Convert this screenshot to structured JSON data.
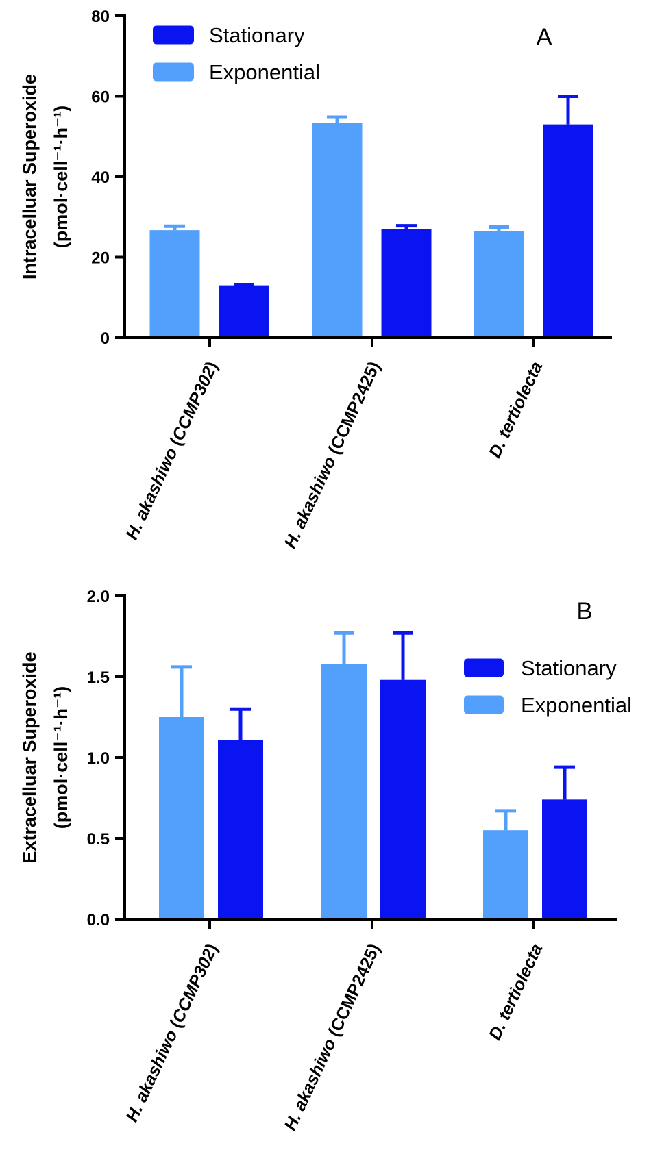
{
  "colors": {
    "stationary": "#0a14f0",
    "exponential": "#52a0fb",
    "axis": "#000000"
  },
  "chart_data": [
    {
      "type": "bar",
      "panel_label": "A",
      "ylabel": "Intracelluar Superoxide",
      "ylabel_unit": "(pmol·cell⁻¹·h⁻¹)",
      "ylim": [
        0,
        80
      ],
      "yticks": [
        "0",
        "20",
        "40",
        "60",
        "80"
      ],
      "categories": [
        {
          "italic": "H. akashiwo",
          "plain": " (",
          "italic2": "CCMP302",
          "plain2": ")"
        },
        {
          "italic": "H. akashiwo",
          "plain": " (CCMP2425)",
          "italic2": "",
          "plain2": ""
        },
        {
          "italic": "D. tertiolecta",
          "plain": "",
          "italic2": "",
          "plain2": ""
        }
      ],
      "series": [
        {
          "name": "Exponential",
          "values": [
            26.7,
            53.3,
            26.5
          ],
          "errors": [
            1.0,
            1.5,
            1.0
          ]
        },
        {
          "name": "Stationary",
          "values": [
            13.0,
            27.0,
            53.0
          ],
          "errors": [
            0.2,
            0.8,
            7.0
          ]
        }
      ],
      "legend": {
        "position": "top-left",
        "order": [
          "Stationary",
          "Exponential"
        ]
      },
      "grid": false
    },
    {
      "type": "bar",
      "panel_label": "B",
      "ylabel": "Extracelluar Superoxide",
      "ylabel_unit": "(pmol·cell⁻¹·h⁻¹)",
      "ylim": [
        0,
        2.0
      ],
      "yticks": [
        "0.0",
        "0.5",
        "1.0",
        "1.5",
        "2.0"
      ],
      "categories": [
        {
          "italic": "H. akashiwo",
          "plain": " (",
          "italic2": "CCMP302",
          "plain2": ")"
        },
        {
          "italic": "H. akashiwo",
          "plain": " (CCMP2425)",
          "italic2": "",
          "plain2": ""
        },
        {
          "italic": "D. tertiolecta",
          "plain": "",
          "italic2": "",
          "plain2": ""
        }
      ],
      "series": [
        {
          "name": "Exponential",
          "values": [
            1.25,
            1.58,
            0.55
          ],
          "errors": [
            0.31,
            0.19,
            0.12
          ]
        },
        {
          "name": "Stationary",
          "values": [
            1.11,
            1.48,
            0.74
          ],
          "errors": [
            0.19,
            0.29,
            0.2
          ]
        }
      ],
      "legend": {
        "position": "top-right",
        "order": [
          "Stationary",
          "Exponential"
        ]
      },
      "grid": false
    }
  ]
}
